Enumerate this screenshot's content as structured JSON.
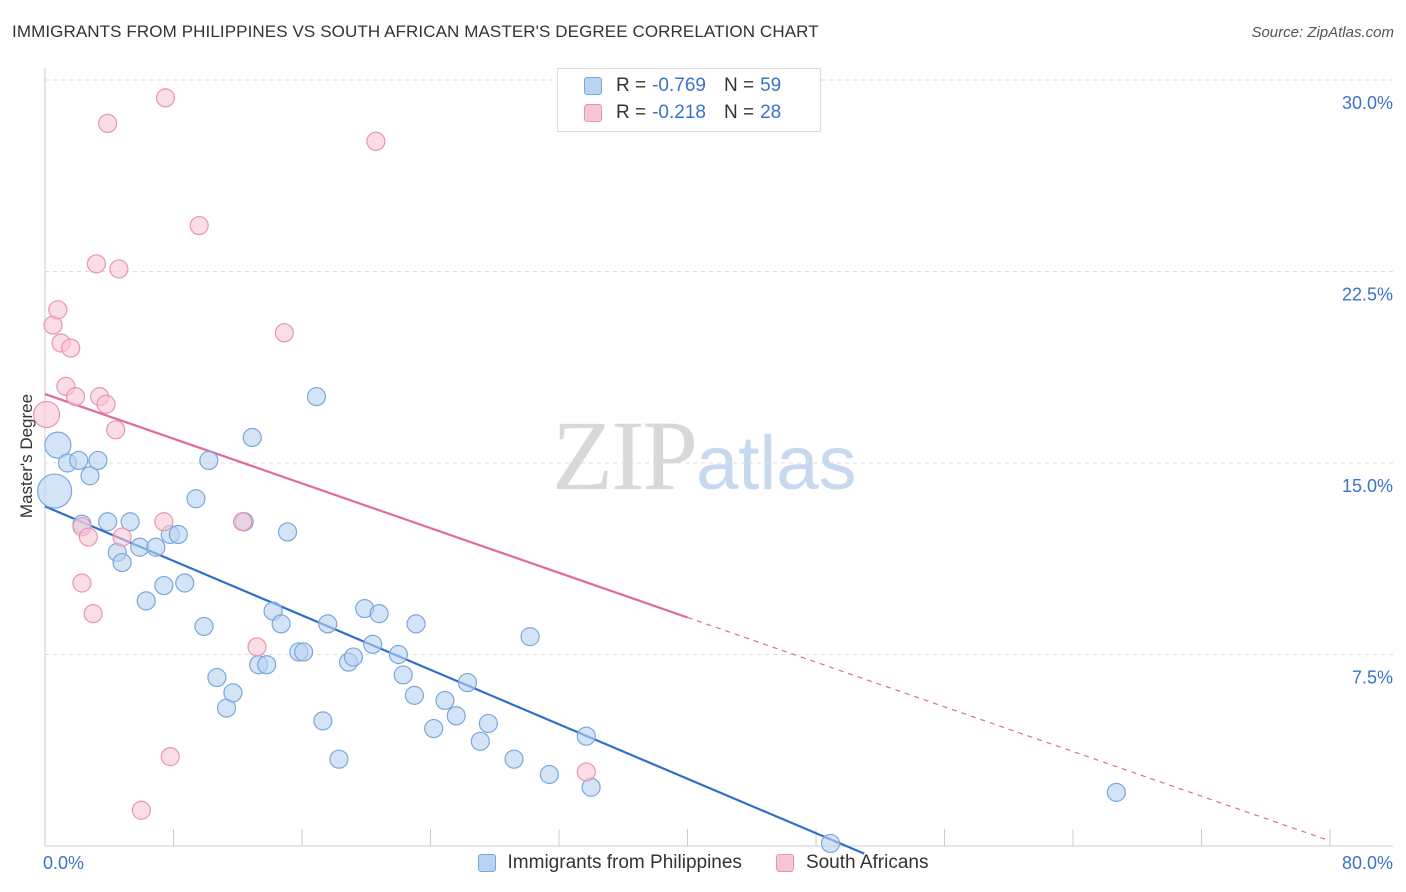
{
  "header": {
    "title": "IMMIGRANTS FROM PHILIPPINES VS SOUTH AFRICAN MASTER'S DEGREE CORRELATION CHART",
    "source": "Source: ZipAtlas.com"
  },
  "watermark": {
    "zip": "ZIP",
    "atlas": "atlas"
  },
  "legend": {
    "rows": [
      {
        "r_label": "R =",
        "r_value": "-0.769",
        "n_label": "N =",
        "n_value": "59"
      },
      {
        "r_label": "R =",
        "r_value": "-0.218",
        "n_label": "N =",
        "n_value": "28"
      }
    ]
  },
  "colors": {
    "blue_fill": "#b8d2f2",
    "blue_stroke": "#7aa7dc",
    "blue_line": "#2f6fcc",
    "pink_fill": "#f7c6d4",
    "pink_stroke": "#ea95ae",
    "pink_line": "#e06c93",
    "tick_text": "#3a73c9",
    "grid": "#dddddd"
  },
  "chart_data": {
    "type": "scatter",
    "title": "IMMIGRANTS FROM PHILIPPINES VS SOUTH AFRICAN MASTER'S DEGREE CORRELATION CHART",
    "xlabel": "",
    "ylabel": "Master's Degree",
    "xlim": [
      0,
      80
    ],
    "ylim": [
      0,
      30
    ],
    "x_tick_labels": [
      "0.0%",
      "80.0%"
    ],
    "y_ticks": [
      7.5,
      15.0,
      22.5,
      30.0
    ],
    "y_tick_labels": [
      "7.5%",
      "15.0%",
      "22.5%",
      "30.0%"
    ],
    "grid": true,
    "legend_position": "bottom-center",
    "series": [
      {
        "name": "Immigrants from Philippines",
        "r": -0.769,
        "n": 59,
        "trend": {
          "x": [
            0,
            51
          ],
          "y": [
            13.3,
            -0.3
          ]
        },
        "points": [
          {
            "x": 0.6,
            "y": 13.9,
            "s": "xl"
          },
          {
            "x": 0.8,
            "y": 15.7,
            "s": "l"
          },
          {
            "x": 1.4,
            "y": 15.0
          },
          {
            "x": 2.1,
            "y": 15.1
          },
          {
            "x": 2.8,
            "y": 14.5
          },
          {
            "x": 3.3,
            "y": 15.1
          },
          {
            "x": 2.3,
            "y": 12.6
          },
          {
            "x": 3.9,
            "y": 12.7
          },
          {
            "x": 4.5,
            "y": 11.5
          },
          {
            "x": 4.8,
            "y": 11.1
          },
          {
            "x": 5.3,
            "y": 12.7
          },
          {
            "x": 5.9,
            "y": 11.7
          },
          {
            "x": 6.3,
            "y": 9.6
          },
          {
            "x": 6.9,
            "y": 11.7
          },
          {
            "x": 7.4,
            "y": 10.2
          },
          {
            "x": 7.8,
            "y": 12.2
          },
          {
            "x": 8.3,
            "y": 12.2
          },
          {
            "x": 8.7,
            "y": 10.3
          },
          {
            "x": 9.4,
            "y": 13.6
          },
          {
            "x": 9.9,
            "y": 8.6
          },
          {
            "x": 10.2,
            "y": 15.1
          },
          {
            "x": 10.7,
            "y": 6.6
          },
          {
            "x": 11.3,
            "y": 5.4
          },
          {
            "x": 11.7,
            "y": 6.0
          },
          {
            "x": 12.4,
            "y": 12.7
          },
          {
            "x": 12.9,
            "y": 16.0
          },
          {
            "x": 13.3,
            "y": 7.1
          },
          {
            "x": 13.8,
            "y": 7.1
          },
          {
            "x": 14.2,
            "y": 9.2
          },
          {
            "x": 14.7,
            "y": 8.7
          },
          {
            "x": 15.1,
            "y": 12.3
          },
          {
            "x": 15.8,
            "y": 7.6
          },
          {
            "x": 16.1,
            "y": 7.6
          },
          {
            "x": 16.9,
            "y": 17.6
          },
          {
            "x": 17.3,
            "y": 4.9
          },
          {
            "x": 17.6,
            "y": 8.7
          },
          {
            "x": 18.3,
            "y": 3.4
          },
          {
            "x": 18.9,
            "y": 7.2
          },
          {
            "x": 19.2,
            "y": 7.4
          },
          {
            "x": 19.9,
            "y": 9.3
          },
          {
            "x": 20.4,
            "y": 7.9
          },
          {
            "x": 20.8,
            "y": 9.1
          },
          {
            "x": 22.0,
            "y": 7.5
          },
          {
            "x": 22.3,
            "y": 6.7
          },
          {
            "x": 23.0,
            "y": 5.9
          },
          {
            "x": 23.1,
            "y": 8.7
          },
          {
            "x": 24.2,
            "y": 4.6
          },
          {
            "x": 24.9,
            "y": 5.7
          },
          {
            "x": 25.6,
            "y": 5.1
          },
          {
            "x": 26.3,
            "y": 6.4
          },
          {
            "x": 27.1,
            "y": 4.1
          },
          {
            "x": 27.6,
            "y": 4.8
          },
          {
            "x": 29.2,
            "y": 3.4
          },
          {
            "x": 30.2,
            "y": 8.2
          },
          {
            "x": 31.4,
            "y": 2.8
          },
          {
            "x": 33.7,
            "y": 4.3
          },
          {
            "x": 34.0,
            "y": 2.3
          },
          {
            "x": 48.9,
            "y": 0.1
          },
          {
            "x": 66.7,
            "y": 2.1
          }
        ]
      },
      {
        "name": "South Africans",
        "r": -0.218,
        "n": 28,
        "trend": {
          "x": [
            0,
            80
          ],
          "y": [
            17.7,
            0.2
          ],
          "solid_until": 40
        },
        "points": [
          {
            "x": 0.1,
            "y": 16.9,
            "s": "l"
          },
          {
            "x": 0.5,
            "y": 20.4
          },
          {
            "x": 0.8,
            "y": 21.0
          },
          {
            "x": 1.0,
            "y": 19.7
          },
          {
            "x": 1.3,
            "y": 18.0
          },
          {
            "x": 1.6,
            "y": 19.5
          },
          {
            "x": 1.9,
            "y": 17.6
          },
          {
            "x": 2.3,
            "y": 12.5
          },
          {
            "x": 2.3,
            "y": 10.3
          },
          {
            "x": 2.7,
            "y": 12.1
          },
          {
            "x": 3.0,
            "y": 9.1
          },
          {
            "x": 3.2,
            "y": 22.8
          },
          {
            "x": 3.4,
            "y": 17.6
          },
          {
            "x": 3.8,
            "y": 17.3
          },
          {
            "x": 3.9,
            "y": 28.3
          },
          {
            "x": 4.4,
            "y": 16.3
          },
          {
            "x": 4.6,
            "y": 22.6
          },
          {
            "x": 4.8,
            "y": 12.1
          },
          {
            "x": 6.0,
            "y": 1.4
          },
          {
            "x": 7.4,
            "y": 12.7
          },
          {
            "x": 7.5,
            "y": 29.3
          },
          {
            "x": 7.8,
            "y": 3.5
          },
          {
            "x": 9.6,
            "y": 24.3
          },
          {
            "x": 13.2,
            "y": 7.8
          },
          {
            "x": 12.3,
            "y": 12.7
          },
          {
            "x": 14.9,
            "y": 20.1
          },
          {
            "x": 20.6,
            "y": 27.6
          },
          {
            "x": 33.7,
            "y": 2.9
          }
        ]
      }
    ]
  },
  "bottom_legend": {
    "items": [
      "Immigrants from Philippines",
      "South Africans"
    ]
  }
}
